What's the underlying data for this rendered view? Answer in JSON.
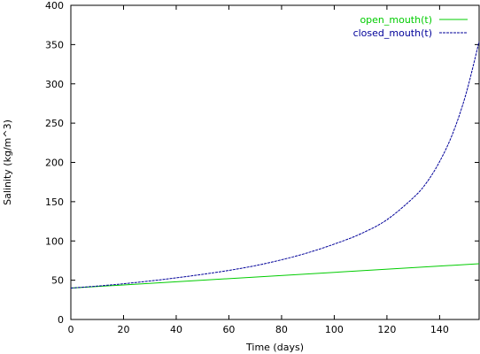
{
  "chart_data": {
    "type": "line",
    "title": "",
    "xlabel": "Time (days)",
    "ylabel": "Salinity (kg/m^3)",
    "xlim": [
      0,
      155
    ],
    "ylim": [
      0,
      400
    ],
    "xticks": [
      0,
      20,
      40,
      60,
      80,
      100,
      120,
      140
    ],
    "yticks": [
      0,
      50,
      100,
      150,
      200,
      250,
      300,
      350,
      400
    ],
    "grid": false,
    "legend_position": "top-right",
    "series": [
      {
        "name": "open_mouth(t)",
        "color": "#00cc00",
        "style": "solid",
        "x": [
          0,
          155
        ],
        "y": [
          40,
          71
        ]
      },
      {
        "name": "closed_mouth(t)",
        "color": "#000099",
        "style": "dashed",
        "x": [
          0,
          10,
          20,
          30,
          40,
          50,
          60,
          70,
          80,
          90,
          100,
          110,
          120,
          130,
          135,
          140,
          145,
          150,
          155
        ],
        "y": [
          40,
          42.5,
          45.5,
          49,
          53,
          57.5,
          62.5,
          68.5,
          76,
          85,
          96,
          109,
          127,
          155,
          174,
          201,
          237,
          287,
          354
        ]
      }
    ]
  }
}
